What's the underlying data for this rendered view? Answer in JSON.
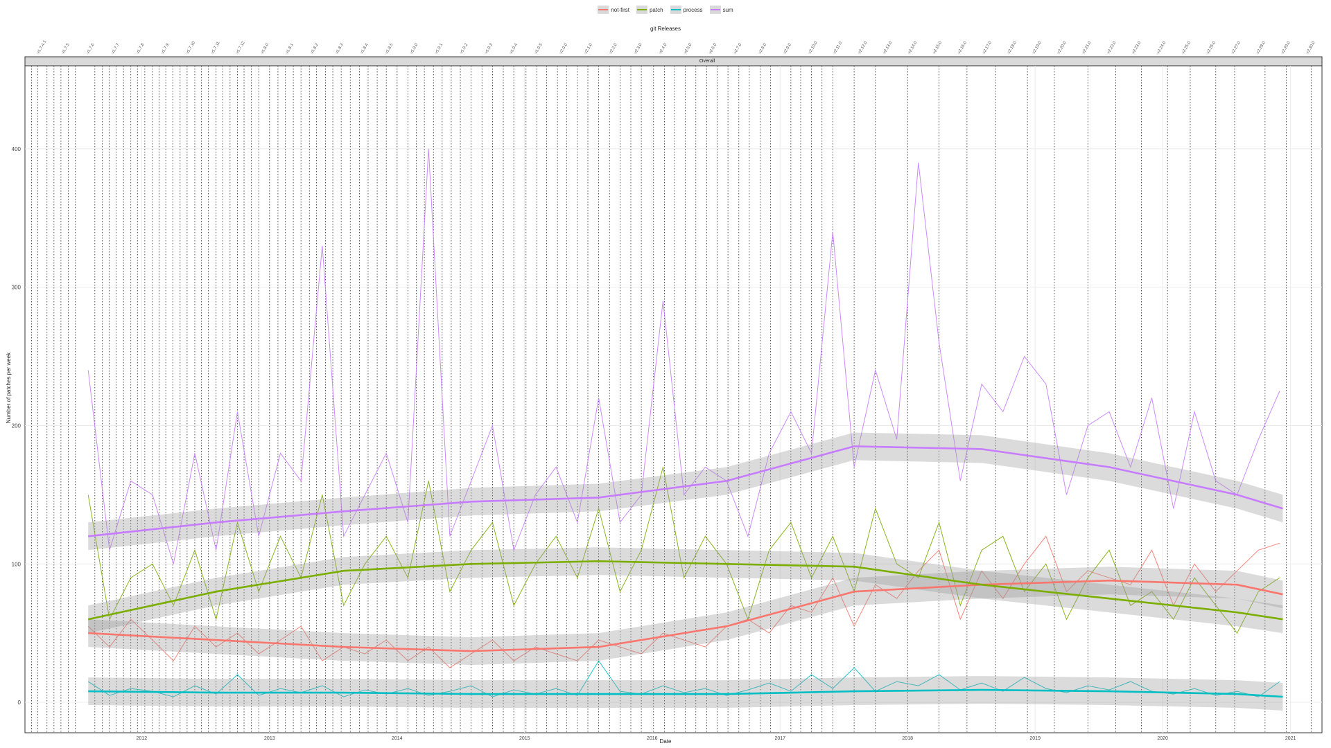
{
  "legend": {
    "items": [
      {
        "label": "not-first",
        "color": "#F8766D"
      },
      {
        "label": "patch",
        "color": "#7CAE00"
      },
      {
        "label": "process",
        "color": "#00BFC4"
      },
      {
        "label": "sum",
        "color": "#C77CFF"
      }
    ]
  },
  "secondary_title": "git Releases",
  "strip_label": "Overall",
  "chart_data": {
    "type": "line",
    "xlabel": "Date",
    "ylabel": "Number of patches per week",
    "x_ticks": [
      "2012",
      "2013",
      "2014",
      "2015",
      "2016",
      "2017",
      "2018",
      "2019",
      "2020",
      "2021"
    ],
    "y_ticks": [
      0,
      100,
      200,
      300,
      400
    ],
    "xlim": [
      "2011-02-01",
      "2021-04-01"
    ],
    "ylim": [
      -22,
      460
    ],
    "grid": true,
    "legend_position": "top",
    "release_labels": [
      "v1.7.4.1",
      "v1.7.5",
      "v1.7.6",
      "v1.7.7",
      "v1.7.8",
      "v1.7.9",
      "v1.7.10",
      "v1.7.11",
      "v1.7.12",
      "v1.8.0",
      "v1.8.1",
      "v1.8.2",
      "v1.8.3",
      "v1.8.4",
      "v1.8.5",
      "v1.9.0",
      "v1.9.1",
      "v1.9.2",
      "v1.9.3",
      "v1.9.4",
      "v1.9.5",
      "v2.0.0",
      "v2.1.0",
      "v2.2.0",
      "v2.3.0",
      "v2.4.0",
      "v2.5.0",
      "v2.6.0",
      "v2.7.0",
      "v2.8.0",
      "v2.9.0",
      "v2.10.0",
      "v2.11.0",
      "v2.12.0",
      "v2.13.0",
      "v2.14.0",
      "v2.15.0",
      "v2.16.0",
      "v2.17.0",
      "v2.18.0",
      "v2.19.0",
      "v2.20.0",
      "v2.21.0",
      "v2.22.0",
      "v2.23.0",
      "v2.24.0",
      "v2.25.0",
      "v2.26.0",
      "v2.27.0",
      "v2.28.0",
      "v2.29.0",
      "v2.30.0"
    ],
    "release_lines": [
      "2011-02-20",
      "2011-03-10",
      "2011-04-05",
      "2011-04-25",
      "2011-05-15",
      "2011-06-05",
      "2011-06-25",
      "2011-08-20",
      "2011-09-10",
      "2011-09-30",
      "2011-10-20",
      "2011-11-10",
      "2011-12-01",
      "2011-12-20",
      "2012-01-10",
      "2012-02-01",
      "2012-02-20",
      "2012-03-10",
      "2012-03-30",
      "2012-04-20",
      "2012-05-10",
      "2012-06-01",
      "2012-06-20",
      "2012-07-10",
      "2012-08-01",
      "2012-08-20",
      "2012-09-10",
      "2012-10-01",
      "2012-10-20",
      "2012-11-10",
      "2012-12-01",
      "2013-01-01",
      "2013-01-25",
      "2013-02-15",
      "2013-03-10",
      "2013-04-01",
      "2013-04-25",
      "2013-05-15",
      "2013-06-10",
      "2013-07-01",
      "2013-07-25",
      "2013-08-20",
      "2013-09-15",
      "2013-10-10",
      "2013-11-05",
      "2013-12-01",
      "2014-01-01",
      "2014-02-01",
      "2014-02-25",
      "2014-03-20",
      "2014-04-15",
      "2014-05-10",
      "2014-06-05",
      "2014-07-01",
      "2014-08-01",
      "2014-09-01",
      "2014-10-01",
      "2014-11-01",
      "2014-12-01",
      "2015-01-05",
      "2015-02-05",
      "2015-03-05",
      "2015-04-05",
      "2015-05-01",
      "2015-06-01",
      "2015-07-01",
      "2015-08-01",
      "2015-09-01",
      "2015-10-01",
      "2015-11-01",
      "2015-12-01",
      "2016-01-05",
      "2016-02-05",
      "2016-03-05",
      "2016-04-05",
      "2016-05-05",
      "2016-06-05",
      "2016-07-05",
      "2016-08-05",
      "2016-09-05",
      "2016-10-05",
      "2016-11-05",
      "2016-12-05",
      "2017-02-01",
      "2017-03-01",
      "2017-04-01",
      "2017-05-01",
      "2017-06-01",
      "2017-08-01",
      "2017-10-01",
      "2018-01-01",
      "2018-04-01",
      "2018-06-20",
      "2018-09-10",
      "2018-12-10",
      "2019-02-25",
      "2019-06-01",
      "2019-08-20",
      "2019-11-01",
      "2020-01-15",
      "2020-03-20",
      "2020-06-01",
      "2020-07-25",
      "2020-10-20",
      "2020-12-20",
      "2021-03-01"
    ],
    "series": [
      {
        "name": "not-first",
        "color": "#F8766D",
        "x": [
          "2011-08-01",
          "2011-10-01",
          "2011-12-01",
          "2012-02-01",
          "2012-04-01",
          "2012-06-01",
          "2012-08-01",
          "2012-10-01",
          "2012-12-01",
          "2013-02-01",
          "2013-04-01",
          "2013-06-01",
          "2013-08-01",
          "2013-10-01",
          "2013-12-01",
          "2014-02-01",
          "2014-04-01",
          "2014-06-01",
          "2014-08-01",
          "2014-10-01",
          "2014-12-01",
          "2015-02-01",
          "2015-04-01",
          "2015-06-01",
          "2015-08-01",
          "2015-10-01",
          "2015-12-01",
          "2016-02-01",
          "2016-04-01",
          "2016-06-01",
          "2016-08-01",
          "2016-10-01",
          "2016-12-01",
          "2017-02-01",
          "2017-04-01",
          "2017-06-01",
          "2017-08-01",
          "2017-10-01",
          "2017-12-01",
          "2018-02-01",
          "2018-04-01",
          "2018-06-01",
          "2018-08-01",
          "2018-10-01",
          "2018-12-01",
          "2019-02-01",
          "2019-04-01",
          "2019-06-01",
          "2019-08-01",
          "2019-10-01",
          "2019-12-01",
          "2020-02-01",
          "2020-04-01",
          "2020-06-01",
          "2020-08-01",
          "2020-10-01",
          "2020-12-01"
        ],
        "values": [
          55,
          40,
          60,
          45,
          30,
          55,
          40,
          50,
          35,
          45,
          55,
          30,
          40,
          35,
          45,
          30,
          40,
          25,
          35,
          45,
          30,
          40,
          35,
          30,
          45,
          40,
          35,
          50,
          45,
          40,
          55,
          60,
          50,
          70,
          65,
          90,
          55,
          85,
          75,
          95,
          110,
          60,
          95,
          75,
          100,
          120,
          80,
          95,
          90,
          85,
          110,
          70,
          100,
          80,
          95,
          110,
          115
        ]
      },
      {
        "name": "patch",
        "color": "#7CAE00",
        "x": [
          "2011-08-01",
          "2011-10-01",
          "2011-12-01",
          "2012-02-01",
          "2012-04-01",
          "2012-06-01",
          "2012-08-01",
          "2012-10-01",
          "2012-12-01",
          "2013-02-01",
          "2013-04-01",
          "2013-06-01",
          "2013-08-01",
          "2013-10-01",
          "2013-12-01",
          "2014-02-01",
          "2014-04-01",
          "2014-06-01",
          "2014-08-01",
          "2014-10-01",
          "2014-12-01",
          "2015-02-01",
          "2015-04-01",
          "2015-06-01",
          "2015-08-01",
          "2015-10-01",
          "2015-12-01",
          "2016-02-01",
          "2016-04-01",
          "2016-06-01",
          "2016-08-01",
          "2016-10-01",
          "2016-12-01",
          "2017-02-01",
          "2017-04-01",
          "2017-06-01",
          "2017-08-01",
          "2017-10-01",
          "2017-12-01",
          "2018-02-01",
          "2018-04-01",
          "2018-06-01",
          "2018-08-01",
          "2018-10-01",
          "2018-12-01",
          "2019-02-01",
          "2019-04-01",
          "2019-06-01",
          "2019-08-01",
          "2019-10-01",
          "2019-12-01",
          "2020-02-01",
          "2020-04-01",
          "2020-06-01",
          "2020-08-01",
          "2020-10-01",
          "2020-12-01"
        ],
        "values": [
          150,
          60,
          90,
          100,
          70,
          110,
          60,
          130,
          80,
          120,
          90,
          150,
          70,
          100,
          120,
          90,
          160,
          80,
          110,
          130,
          70,
          100,
          120,
          90,
          140,
          80,
          110,
          170,
          90,
          120,
          100,
          60,
          110,
          130,
          90,
          120,
          80,
          140,
          100,
          90,
          130,
          70,
          110,
          120,
          80,
          100,
          60,
          90,
          110,
          70,
          80,
          60,
          90,
          70,
          50,
          80,
          90
        ]
      },
      {
        "name": "process",
        "color": "#00BFC4",
        "x": [
          "2011-08-01",
          "2011-10-01",
          "2011-12-01",
          "2012-02-01",
          "2012-04-01",
          "2012-06-01",
          "2012-08-01",
          "2012-10-01",
          "2012-12-01",
          "2013-02-01",
          "2013-04-01",
          "2013-06-01",
          "2013-08-01",
          "2013-10-01",
          "2013-12-01",
          "2014-02-01",
          "2014-04-01",
          "2014-06-01",
          "2014-08-01",
          "2014-10-01",
          "2014-12-01",
          "2015-02-01",
          "2015-04-01",
          "2015-06-01",
          "2015-08-01",
          "2015-10-01",
          "2015-12-01",
          "2016-02-01",
          "2016-04-01",
          "2016-06-01",
          "2016-08-01",
          "2016-10-01",
          "2016-12-01",
          "2017-02-01",
          "2017-04-01",
          "2017-06-01",
          "2017-08-01",
          "2017-10-01",
          "2017-12-01",
          "2018-02-01",
          "2018-04-01",
          "2018-06-01",
          "2018-08-01",
          "2018-10-01",
          "2018-12-01",
          "2019-02-01",
          "2019-04-01",
          "2019-06-01",
          "2019-08-01",
          "2019-10-01",
          "2019-12-01",
          "2020-02-01",
          "2020-04-01",
          "2020-06-01",
          "2020-08-01",
          "2020-10-01",
          "2020-12-01"
        ],
        "values": [
          15,
          5,
          10,
          8,
          4,
          12,
          6,
          20,
          5,
          10,
          7,
          12,
          4,
          9,
          6,
          10,
          5,
          8,
          12,
          4,
          9,
          6,
          10,
          5,
          30,
          8,
          6,
          12,
          7,
          10,
          5,
          9,
          14,
          8,
          20,
          10,
          25,
          8,
          15,
          12,
          20,
          9,
          14,
          8,
          18,
          10,
          7,
          12,
          9,
          15,
          8,
          6,
          10,
          5,
          8,
          4,
          15
        ]
      },
      {
        "name": "sum",
        "color": "#C77CFF",
        "x": [
          "2011-08-01",
          "2011-10-01",
          "2011-12-01",
          "2012-02-01",
          "2012-04-01",
          "2012-06-01",
          "2012-08-01",
          "2012-10-01",
          "2012-12-01",
          "2013-02-01",
          "2013-04-01",
          "2013-06-01",
          "2013-08-01",
          "2013-10-01",
          "2013-12-01",
          "2014-02-01",
          "2014-04-01",
          "2014-06-01",
          "2014-08-01",
          "2014-10-01",
          "2014-12-01",
          "2015-02-01",
          "2015-04-01",
          "2015-06-01",
          "2015-08-01",
          "2015-10-01",
          "2015-12-01",
          "2016-02-01",
          "2016-04-01",
          "2016-06-01",
          "2016-08-01",
          "2016-10-01",
          "2016-12-01",
          "2017-02-01",
          "2017-04-01",
          "2017-06-01",
          "2017-08-01",
          "2017-10-01",
          "2017-12-01",
          "2018-02-01",
          "2018-04-01",
          "2018-06-01",
          "2018-08-01",
          "2018-10-01",
          "2018-12-01",
          "2019-02-01",
          "2019-04-01",
          "2019-06-01",
          "2019-08-01",
          "2019-10-01",
          "2019-12-01",
          "2020-02-01",
          "2020-04-01",
          "2020-06-01",
          "2020-08-01",
          "2020-10-01",
          "2020-12-01"
        ],
        "values": [
          240,
          110,
          160,
          150,
          100,
          180,
          110,
          210,
          120,
          180,
          160,
          330,
          120,
          150,
          180,
          130,
          400,
          120,
          160,
          200,
          110,
          150,
          170,
          130,
          220,
          130,
          150,
          290,
          150,
          170,
          160,
          120,
          180,
          210,
          180,
          340,
          170,
          240,
          190,
          390,
          260,
          160,
          230,
          210,
          250,
          230,
          150,
          200,
          210,
          170,
          220,
          140,
          210,
          160,
          150,
          190,
          225
        ]
      }
    ],
    "smooths": [
      {
        "name": "not-first",
        "color": "#F8766D",
        "x": [
          "2011-08-01",
          "2012-08-01",
          "2013-08-01",
          "2014-08-01",
          "2015-08-01",
          "2016-08-01",
          "2017-08-01",
          "2018-08-01",
          "2019-08-01",
          "2020-08-01",
          "2020-12-10"
        ],
        "values": [
          50,
          45,
          40,
          37,
          40,
          55,
          80,
          85,
          88,
          85,
          78
        ]
      },
      {
        "name": "patch",
        "color": "#7CAE00",
        "x": [
          "2011-08-01",
          "2012-08-01",
          "2013-08-01",
          "2014-08-01",
          "2015-08-01",
          "2016-08-01",
          "2017-08-01",
          "2018-08-01",
          "2019-08-01",
          "2020-08-01",
          "2020-12-10"
        ],
        "values": [
          60,
          80,
          95,
          100,
          102,
          100,
          98,
          85,
          75,
          65,
          60
        ]
      },
      {
        "name": "process",
        "color": "#00BFC4",
        "x": [
          "2011-08-01",
          "2012-08-01",
          "2013-08-01",
          "2014-08-01",
          "2015-08-01",
          "2016-08-01",
          "2017-08-01",
          "2018-08-01",
          "2019-08-01",
          "2020-08-01",
          "2020-12-10"
        ],
        "values": [
          8,
          7,
          7,
          6,
          6,
          6,
          8,
          9,
          8,
          6,
          4
        ]
      },
      {
        "name": "sum",
        "color": "#C77CFF",
        "x": [
          "2011-08-01",
          "2012-08-01",
          "2013-08-01",
          "2014-08-01",
          "2015-08-01",
          "2016-08-01",
          "2017-08-01",
          "2018-08-01",
          "2019-08-01",
          "2020-08-01",
          "2020-12-10"
        ],
        "values": [
          120,
          130,
          138,
          145,
          148,
          160,
          185,
          183,
          170,
          150,
          140
        ]
      }
    ]
  }
}
